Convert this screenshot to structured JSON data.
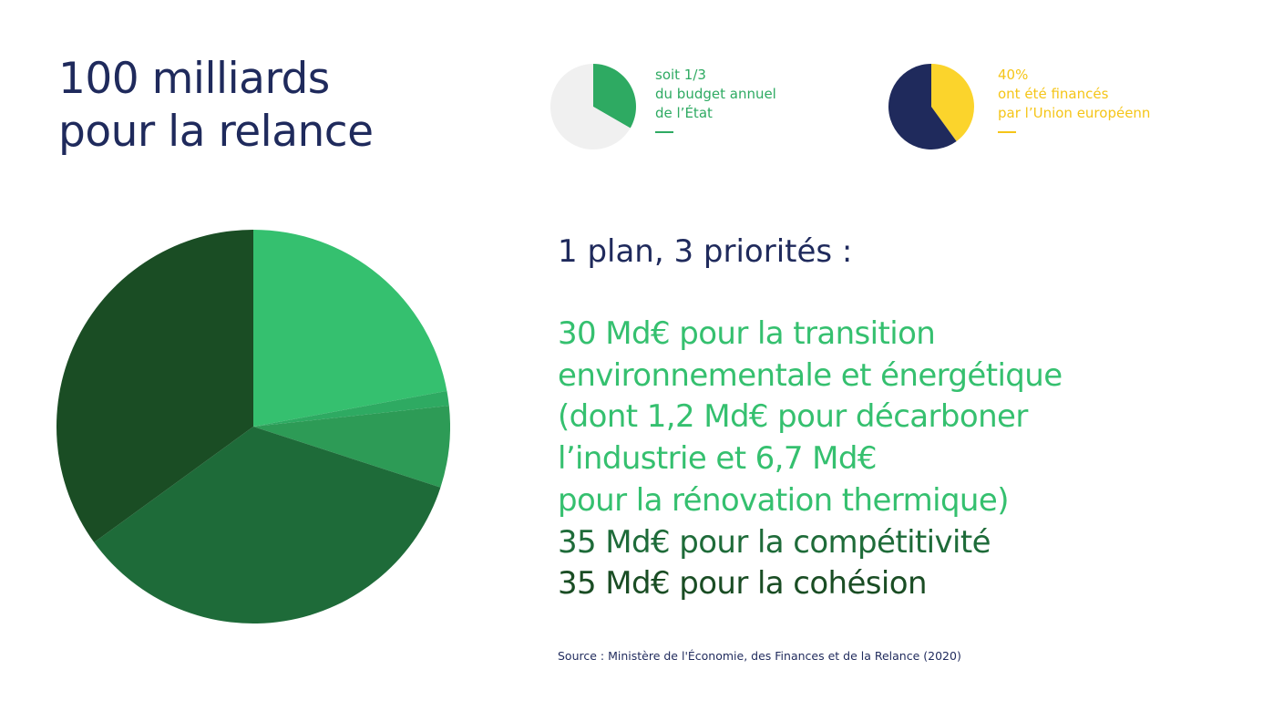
{
  "title": {
    "line1": "100 milliards",
    "line2": "pour la relance"
  },
  "kpi_budget": {
    "lines": [
      "soit 1/3",
      "du budget annuel",
      "de l’État"
    ],
    "share": 0.3333,
    "color": "#2eaa62",
    "bg_color": "#f0f0f0"
  },
  "kpi_eu": {
    "lines": [
      "40%",
      "ont été financés",
      "par l’Union européenn"
    ],
    "share": 0.4,
    "color": "#fbd42c",
    "bg_color": "#1f2a5c"
  },
  "priorities": {
    "heading": "1 plan, 3 priorités :",
    "lines": [
      {
        "text": "30 Md€ pour la transition",
        "color": "#35c06f"
      },
      {
        "text": "environnementale et énergétique",
        "color": "#35c06f"
      },
      {
        "text": "(dont 1,2 Md€ pour décarboner",
        "color": "#35c06f"
      },
      {
        "text": "l’industrie et 6,7 Md€",
        "color": "#35c06f"
      },
      {
        "text": "pour la rénovation thermique)",
        "color": "#35c06f"
      },
      {
        "text": "35 Md€ pour la compétitivité",
        "color": "#1e6b39"
      },
      {
        "text": "35 Md€ pour la cohésion",
        "color": "#1a4d24"
      }
    ]
  },
  "source": "Source : Ministère de l'Économie, des Finances et de la Relance (2020)",
  "chart_data": {
    "type": "pie",
    "start": "12 o'clock",
    "direction": "clockwise",
    "values": [
      22.1,
      1.2,
      6.7,
      35,
      35
    ],
    "colors": [
      "#35c06f",
      "#2eaa62",
      "#2d9b56",
      "#1e6b39",
      "#1a4d24"
    ]
  }
}
